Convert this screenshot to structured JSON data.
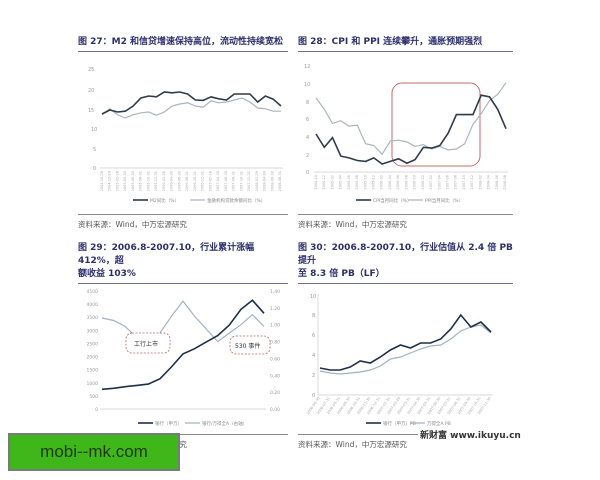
{
  "figures": [
    {
      "id": "fig27",
      "title": "图 27：M2 和信贷增速保持高位，流动性持续宽松",
      "source": "资料来源：Wind，中万宏源研究"
    },
    {
      "id": "fig28",
      "title": "图 28：CPI 和 PPI 连续攀升，通胀预期强烈",
      "source": "资料来源：Wind，中万宏源研究"
    },
    {
      "id": "fig29",
      "title_line1": "图 29：2006.8-2007.10，行业累计涨幅 412%，超",
      "title_line2": "额收益 103%",
      "source": "资料来源：Wind，中万宏源研究"
    },
    {
      "id": "fig30",
      "title_line1": "图 30：2006.8-2007.10，行业估值从 2.4 倍 PB 提升",
      "title_line2": "至 8.3 倍 PB（LF）",
      "source": "资料来源：Wind，中万宏源研究"
    }
  ],
  "watermark": {
    "text": "mobi--mk.com",
    "bg": "#3fb61a"
  },
  "site_mark": "新财富 www.ikuyu.cn",
  "chart_data": [
    {
      "type": "line",
      "title": "M2 和信贷增速保持高位，流动性持续宽松",
      "ylim": [
        0,
        25
      ],
      "yticks": [
        0,
        5,
        10,
        15,
        20,
        25
      ],
      "x": [
        "2004-10-29",
        "2004-12-29",
        "2005-02-28",
        "2005-04-30",
        "2005-06-30",
        "2005-08-31",
        "2005-10-31",
        "2005-12-31",
        "2006-02-28",
        "2006-04-30",
        "2006-06-30",
        "2006-08-31",
        "2006-10-31",
        "2006-12-31",
        "2007-02-28",
        "2007-04-30",
        "2007-06-30",
        "2007-08-31",
        "2007-10-31",
        "2007-12-31",
        "2008-02-29",
        "2008-04-30",
        "2008-06-30",
        "2008-08-31"
      ],
      "series": [
        {
          "name": "M2同比（%）",
          "color": "#2f3a4a",
          "values": [
            13.5,
            14.5,
            14.0,
            14.2,
            15.5,
            17.5,
            18.0,
            17.8,
            19.0,
            18.8,
            19.0,
            18.5,
            17.0,
            16.9,
            17.8,
            17.3,
            17.0,
            18.5,
            18.5,
            18.5,
            16.5,
            18.0,
            17.2,
            15.5
          ]
        },
        {
          "name": "金融机构贷款余额同比（%）",
          "color": "#a9b4bc",
          "values": [
            13.3,
            14.8,
            13.3,
            12.5,
            13.3,
            13.8,
            14.0,
            13.2,
            14.0,
            15.5,
            16.0,
            16.3,
            15.5,
            15.2,
            16.8,
            16.3,
            16.5,
            17.0,
            17.5,
            16.5,
            15.0,
            14.8,
            14.2,
            14.2
          ]
        }
      ],
      "xlabel": "",
      "ylabel": "",
      "legend_position": "bottom"
    },
    {
      "type": "line",
      "title": "CPI 和 PPI 连续攀升，通胀预期强烈",
      "ylim": [
        0,
        12
      ],
      "yticks": [
        0,
        2,
        4,
        6,
        8,
        10,
        12
      ],
      "x": [
        "2004-10",
        "2004-12",
        "2005-02",
        "2005-04",
        "2005-06",
        "2005-08",
        "2005-10",
        "2005-12",
        "2006-02",
        "2006-04",
        "2006-06",
        "2006-08",
        "2006-10",
        "2006-12",
        "2007-02",
        "2007-04",
        "2007-06",
        "2007-08",
        "2007-10",
        "2007-12",
        "2008-02",
        "2008-04",
        "2008-06",
        "2008-08"
      ],
      "series": [
        {
          "name": "CPI当月同比（%）",
          "color": "#2f3a4a",
          "values": [
            4.3,
            2.8,
            3.9,
            1.8,
            1.6,
            1.3,
            1.2,
            1.6,
            0.9,
            1.2,
            1.5,
            1.0,
            1.4,
            2.8,
            2.7,
            3.0,
            4.4,
            6.5,
            6.5,
            6.5,
            8.7,
            8.5,
            7.1,
            4.9
          ]
        },
        {
          "name": "PPI当月同比（%）",
          "color": "#a9b4bc",
          "values": [
            8.4,
            7.1,
            5.5,
            5.8,
            5.2,
            5.3,
            3.2,
            3.0,
            2.0,
            3.5,
            3.6,
            3.4,
            2.9,
            3.1,
            2.6,
            2.9,
            2.5,
            2.6,
            3.2,
            5.4,
            6.6,
            8.1,
            8.8,
            10.1
          ]
        }
      ],
      "annotations": [
        {
          "type": "rounded-rect",
          "color": "#c96a6a",
          "x_range": [
            "2006-06",
            "2008-04"
          ],
          "y_range": [
            1,
            10
          ]
        }
      ],
      "legend_position": "bottom"
    },
    {
      "type": "line",
      "title": "2006.8-2007.10，行业累计涨幅 412%，超额收益 103%",
      "ylim": [
        0,
        4500
      ],
      "yticks": [
        0,
        500,
        1000,
        1500,
        2000,
        2500,
        3000,
        3500,
        4000,
        4500
      ],
      "y2lim": [
        0.0,
        1.4
      ],
      "y2ticks": [
        0.0,
        0.2,
        0.4,
        0.6,
        0.8,
        1.0,
        1.2,
        1.4
      ],
      "x": [
        "2006-08",
        "2006-09",
        "2006-10",
        "2006-11",
        "2006-12",
        "2007-01",
        "2007-02",
        "2007-03",
        "2007-04",
        "2007-05",
        "2007-06",
        "2007-07",
        "2007-08",
        "2007-09",
        "2007-10"
      ],
      "series": [
        {
          "name": "银行（申万）",
          "axis": "left",
          "color": "#1f2f48",
          "values": [
            750,
            790,
            850,
            900,
            950,
            1150,
            1600,
            2100,
            2300,
            2550,
            2800,
            3200,
            3800,
            4150,
            3650
          ]
        },
        {
          "name": "银行/万得全A（右轴）",
          "axis": "right",
          "color": "#9fb3c2",
          "values": [
            1.08,
            1.05,
            0.98,
            0.85,
            0.82,
            0.9,
            1.1,
            1.28,
            1.1,
            0.95,
            0.8,
            0.9,
            1.0,
            1.12,
            0.98
          ]
        }
      ],
      "annotations": [
        {
          "text": "工行上市",
          "x": "2006-10"
        },
        {
          "text": "530 事件",
          "x": "2007-05"
        }
      ],
      "legend_position": "bottom"
    },
    {
      "type": "line",
      "title": "2006.8-2007.10，行业估值从 2.4 倍 PB 提升至 8.3 倍 PB（LF）",
      "ylim": [
        0,
        10
      ],
      "yticks": [
        0,
        2,
        4,
        6,
        8,
        10
      ],
      "x": [
        "2006-06-30",
        "2006-07-31",
        "2006-08-31",
        "2006-09-30",
        "2006-10-31",
        "2006-11-30",
        "2006-12-31",
        "2007-01-31",
        "2007-02-28",
        "2007-03-31",
        "2007-04-30",
        "2007-05-31",
        "2007-06-30",
        "2007-07-31",
        "2007-08-31",
        "2007-09-30",
        "2007-10-31",
        "2007-11-30"
      ],
      "series": [
        {
          "name": "银行（申万）PB",
          "color": "#1f2f48",
          "values": [
            2.7,
            2.5,
            2.5,
            2.8,
            3.4,
            3.2,
            3.8,
            4.5,
            5.0,
            4.7,
            5.2,
            5.2,
            5.6,
            6.6,
            8.0,
            6.8,
            7.3,
            6.3
          ]
        },
        {
          "name": "万得全A PB",
          "color": "#9fb3c2",
          "values": [
            2.4,
            2.2,
            2.1,
            2.2,
            2.3,
            2.5,
            2.9,
            3.6,
            3.8,
            4.2,
            4.6,
            4.9,
            5.0,
            5.6,
            6.4,
            6.8,
            7.0,
            6.2
          ]
        }
      ],
      "legend_position": "bottom"
    }
  ]
}
